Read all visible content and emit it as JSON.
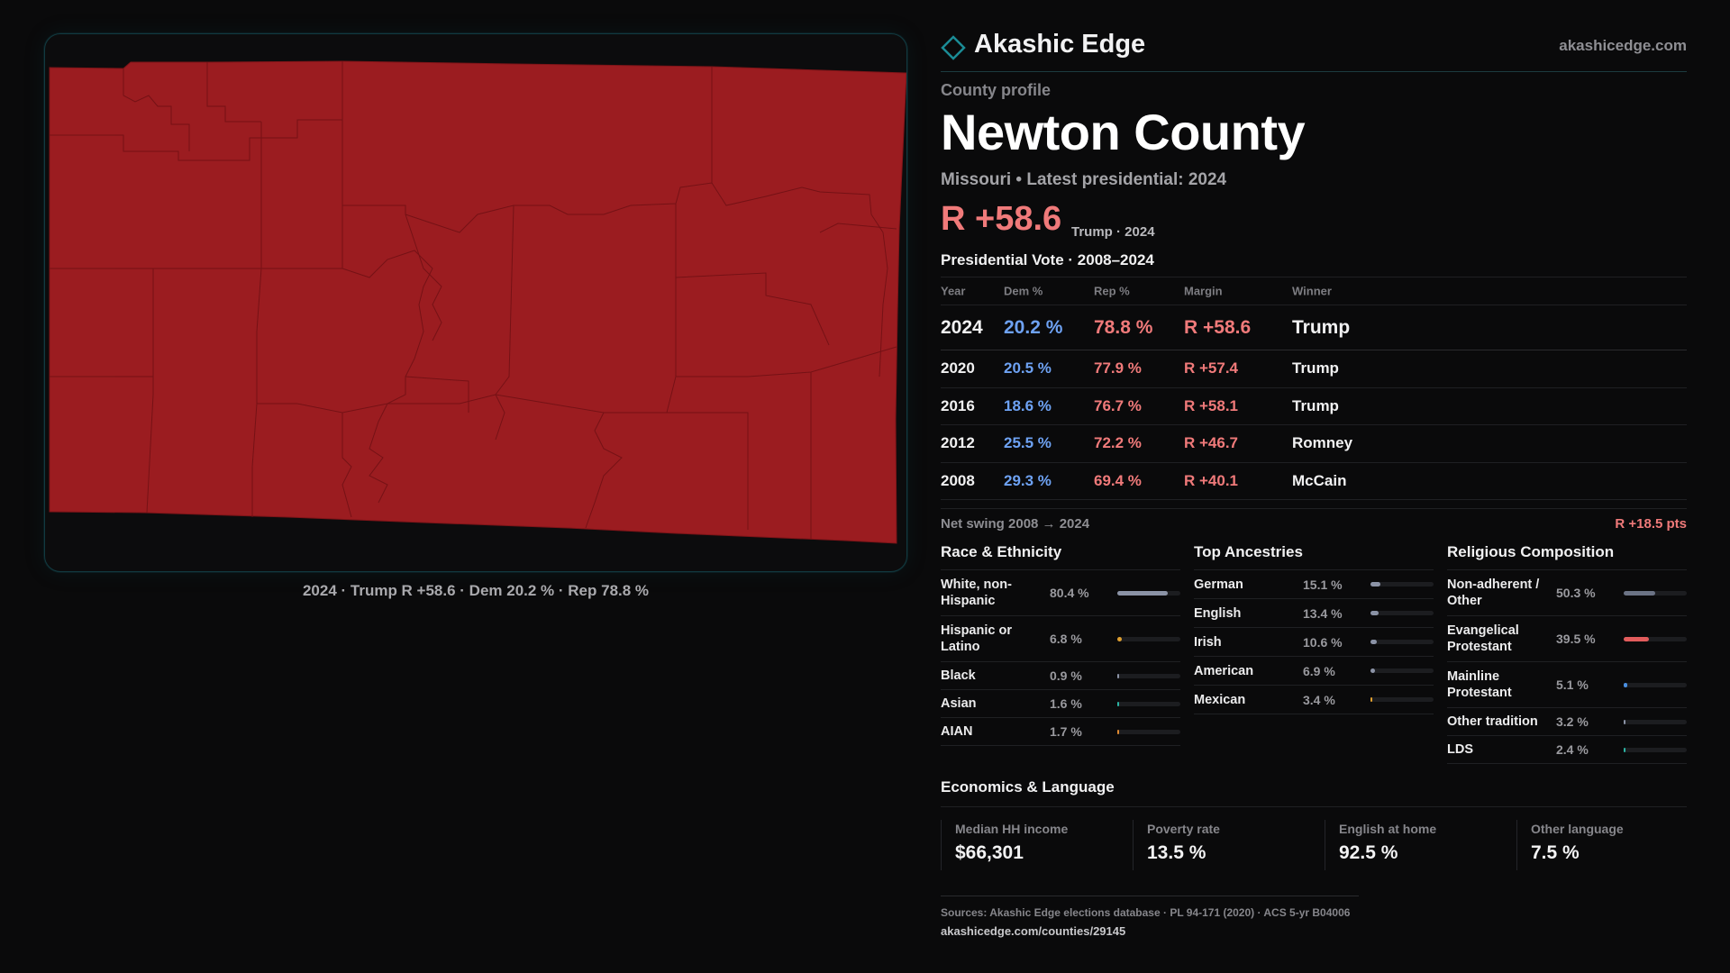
{
  "brand": {
    "name": "Akashic Edge",
    "url": "akashicedge.com",
    "accent": "#1b8c96"
  },
  "profile": {
    "kicker": "County profile",
    "county": "Newton County",
    "subtitle": "Missouri • Latest presidential: 2024",
    "headline_margin": "R +58.6",
    "headline_sub": "Trump · 2024"
  },
  "map": {
    "fill_color": "#9b1c20",
    "caption": "2024 · Trump R +58.6 · Dem 20.2 % · Rep 78.8 %"
  },
  "vote": {
    "title": "Presidential Vote · 2008–2024",
    "headers": {
      "year": "Year",
      "dem": "Dem %",
      "rep": "Rep %",
      "margin": "Margin",
      "winner": "Winner"
    },
    "rows": [
      {
        "year": "2024",
        "dem": "20.2 %",
        "rep": "78.8 %",
        "margin": "R +58.6",
        "winner": "Trump"
      },
      {
        "year": "2020",
        "dem": "20.5 %",
        "rep": "77.9 %",
        "margin": "R +57.4",
        "winner": "Trump"
      },
      {
        "year": "2016",
        "dem": "18.6 %",
        "rep": "76.7 %",
        "margin": "R +58.1",
        "winner": "Trump"
      },
      {
        "year": "2012",
        "dem": "25.5 %",
        "rep": "72.2 %",
        "margin": "R +46.7",
        "winner": "Romney"
      },
      {
        "year": "2008",
        "dem": "29.3 %",
        "rep": "69.4 %",
        "margin": "R +40.1",
        "winner": "McCain"
      }
    ],
    "swing_label": "Net swing 2008 → 2024",
    "swing_value": "R +18.5 pts"
  },
  "race": {
    "title": "Race & Ethnicity",
    "rows": [
      {
        "label": "White, non-Hispanic",
        "pct": "80.4 %",
        "value": 80.4,
        "color": "#8b93a6"
      },
      {
        "label": "Hispanic or Latino",
        "pct": "6.8 %",
        "value": 6.8,
        "color": "#e0a030"
      },
      {
        "label": "Black",
        "pct": "0.9 %",
        "value": 0.9,
        "color": "#8b93a6"
      },
      {
        "label": "Asian",
        "pct": "1.6 %",
        "value": 1.6,
        "color": "#2bb3a3"
      },
      {
        "label": "AIAN",
        "pct": "1.7 %",
        "value": 1.7,
        "color": "#e08a30"
      }
    ]
  },
  "ancestry": {
    "title": "Top Ancestries",
    "rows": [
      {
        "label": "German",
        "pct": "15.1 %",
        "value": 15.1,
        "color": "#8b93a6"
      },
      {
        "label": "English",
        "pct": "13.4 %",
        "value": 13.4,
        "color": "#8b93a6"
      },
      {
        "label": "Irish",
        "pct": "10.6 %",
        "value": 10.6,
        "color": "#8b93a6"
      },
      {
        "label": "American",
        "pct": "6.9 %",
        "value": 6.9,
        "color": "#8b93a6"
      },
      {
        "label": "Mexican",
        "pct": "3.4 %",
        "value": 3.4,
        "color": "#e0a030"
      }
    ]
  },
  "religion": {
    "title": "Religious Composition",
    "rows": [
      {
        "label": "Non-adherent / Other",
        "pct": "50.3 %",
        "value": 50.3,
        "color": "#6b7385"
      },
      {
        "label": "Evangelical Protestant",
        "pct": "39.5 %",
        "value": 39.5,
        "color": "#e25c5c"
      },
      {
        "label": "Mainline Protestant",
        "pct": "5.1 %",
        "value": 5.1,
        "color": "#4a8fe0"
      },
      {
        "label": "Other tradition",
        "pct": "3.2 %",
        "value": 3.2,
        "color": "#8b93a6"
      },
      {
        "label": "LDS",
        "pct": "2.4 %",
        "value": 2.4,
        "color": "#2bb3a3"
      }
    ]
  },
  "economics": {
    "title": "Economics & Language",
    "items": [
      {
        "label": "Median HH income",
        "value": "$66,301"
      },
      {
        "label": "Poverty rate",
        "value": "13.5 %"
      },
      {
        "label": "English at home",
        "value": "92.5 %"
      },
      {
        "label": "Other language",
        "value": "7.5 %"
      }
    ]
  },
  "sources": {
    "text": "Sources: Akashic Edge elections database · PL 94-171 (2020) · ACS 5-yr B04006",
    "url": "akashicedge.com/counties/29145"
  }
}
